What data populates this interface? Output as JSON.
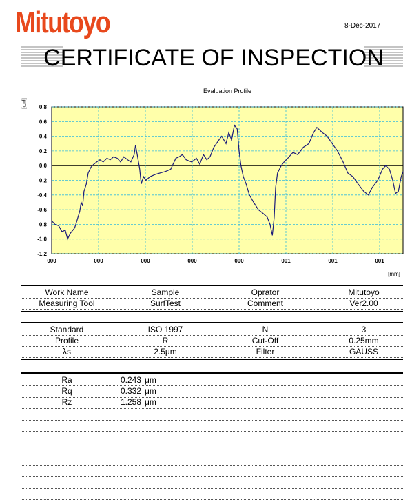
{
  "header": {
    "logo": "Mitutoyo",
    "date": "8-Dec-2017",
    "title": "CERTIFICATE OF INSPECTION"
  },
  "chart_data": {
    "type": "line",
    "title": "Evaluation Profile",
    "y_label": "[μm]",
    "x_label": "[mm]",
    "color": "#1a1a7a",
    "grid": true,
    "xlim": [
      0,
      7.5
    ],
    "xticks": [
      {
        "value": 0,
        "label": "000"
      },
      {
        "value": 1,
        "label": "000"
      },
      {
        "value": 2,
        "label": "000"
      },
      {
        "value": 3,
        "label": "000"
      },
      {
        "value": 4,
        "label": "000"
      },
      {
        "value": 5,
        "label": "001"
      },
      {
        "value": 6,
        "label": "001"
      },
      {
        "value": 7,
        "label": "001"
      }
    ],
    "ylim": [
      -1.2,
      0.8
    ],
    "yticks": [
      0.8,
      0.6,
      0.4,
      0.2,
      {
        "value": 0,
        "label": "0.0"
      },
      -0.2,
      -0.4,
      -0.6,
      -0.8,
      {
        "value": -1,
        "label": "-1.0"
      },
      -1.2
    ],
    "x": [
      0,
      0.07,
      0.15,
      0.22,
      0.29,
      0.34,
      0.4,
      0.49,
      0.54,
      0.6,
      0.63,
      0.66,
      0.69,
      0.74,
      0.78,
      0.84,
      0.9,
      0.96,
      1.03,
      1.1,
      1.18,
      1.25,
      1.32,
      1.4,
      1.47,
      1.54,
      1.62,
      1.69,
      1.76,
      1.79,
      1.84,
      1.88,
      1.91,
      1.96,
      2.01,
      2.1,
      2.21,
      2.31,
      2.43,
      2.54,
      2.65,
      2.72,
      2.79,
      2.87,
      2.99,
      3.09,
      3.16,
      3.24,
      3.31,
      3.38,
      3.46,
      3.57,
      3.63,
      3.72,
      3.78,
      3.84,
      3.9,
      3.96,
      4.0,
      4.04,
      4.09,
      4.15,
      4.22,
      4.31,
      4.41,
      4.51,
      4.6,
      4.66,
      4.71,
      4.75,
      4.78,
      4.82,
      4.9,
      4.96,
      5.04,
      5.15,
      5.25,
      5.37,
      5.49,
      5.59,
      5.66,
      5.78,
      5.88,
      5.99,
      6.1,
      6.22,
      6.32,
      6.43,
      6.54,
      6.66,
      6.76,
      6.84,
      6.96,
      7.06,
      7.13,
      7.21,
      7.28,
      7.34,
      7.4,
      7.46,
      7.5
    ],
    "values": [
      -0.75,
      -0.8,
      -0.82,
      -0.9,
      -0.88,
      -1.0,
      -0.92,
      -0.85,
      -0.75,
      -0.62,
      -0.5,
      -0.55,
      -0.35,
      -0.25,
      -0.1,
      -0.02,
      0.02,
      0.05,
      0.08,
      0.05,
      0.1,
      0.08,
      0.12,
      0.1,
      0.05,
      0.12,
      0.08,
      0.05,
      0.15,
      0.28,
      0.1,
      -0.05,
      -0.25,
      -0.15,
      -0.2,
      -0.15,
      -0.12,
      -0.1,
      -0.08,
      -0.05,
      0.1,
      0.12,
      0.15,
      0.08,
      0.05,
      0.1,
      0.02,
      0.15,
      0.08,
      0.12,
      0.25,
      0.35,
      0.4,
      0.3,
      0.45,
      0.35,
      0.55,
      0.5,
      0.2,
      0.0,
      -0.15,
      -0.25,
      -0.4,
      -0.5,
      -0.6,
      -0.65,
      -0.7,
      -0.8,
      -0.95,
      -0.7,
      -0.3,
      -0.1,
      0.0,
      0.05,
      0.1,
      0.18,
      0.15,
      0.25,
      0.3,
      0.45,
      0.52,
      0.45,
      0.4,
      0.3,
      0.2,
      0.05,
      -0.1,
      -0.15,
      -0.25,
      -0.35,
      -0.4,
      -0.3,
      -0.2,
      -0.05,
      0.0,
      -0.05,
      -0.2,
      -0.38,
      -0.35,
      -0.15,
      -0.08
    ]
  },
  "info": {
    "rows": [
      [
        "Work Name",
        "Sample",
        "Oprator",
        "Mitutoyo"
      ],
      [
        "Measuring Tool",
        "SurfTest",
        "Comment",
        "Ver2.00"
      ]
    ]
  },
  "conditions": {
    "rows": [
      [
        "Standard",
        "ISO 1997",
        "N",
        "3"
      ],
      [
        "Profile",
        "R",
        "Cut-Off",
        "0.25mm"
      ],
      [
        "λs",
        "2.5μm",
        "Filter",
        "GAUSS"
      ]
    ]
  },
  "results": {
    "rows": [
      [
        "Ra",
        "0.243",
        "μm"
      ],
      [
        "Rq",
        "0.332",
        "μm"
      ],
      [
        "Rz",
        "1.258",
        "μm"
      ]
    ]
  }
}
